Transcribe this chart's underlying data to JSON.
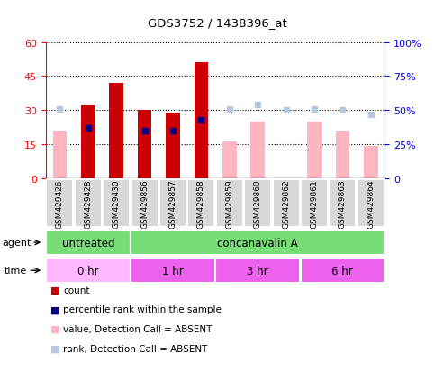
{
  "title": "GDS3752 / 1438396_at",
  "samples": [
    "GSM429426",
    "GSM429428",
    "GSM429430",
    "GSM429856",
    "GSM429857",
    "GSM429858",
    "GSM429859",
    "GSM429860",
    "GSM429862",
    "GSM429861",
    "GSM429863",
    "GSM429864"
  ],
  "count_values": [
    0,
    32,
    42,
    30,
    29,
    51,
    0,
    0,
    0,
    0,
    0,
    0
  ],
  "count_is_present": [
    false,
    true,
    true,
    true,
    true,
    true,
    false,
    false,
    false,
    false,
    false,
    false
  ],
  "value_absent": [
    21,
    0,
    0,
    0,
    0,
    0,
    16,
    25,
    0,
    25,
    21,
    14
  ],
  "rank_dark_values": [
    0,
    37,
    0,
    35,
    35,
    43,
    0,
    0,
    0,
    0,
    0,
    0
  ],
  "rank_dark_present": [
    false,
    true,
    false,
    true,
    true,
    true,
    false,
    false,
    false,
    false,
    false,
    false
  ],
  "rank_absent_values": [
    51,
    0,
    0,
    0,
    0,
    0,
    51,
    54,
    50,
    51,
    50,
    47
  ],
  "rank_absent_present": [
    true,
    false,
    false,
    false,
    false,
    false,
    true,
    true,
    true,
    true,
    true,
    true
  ],
  "ylim_left": [
    0,
    60
  ],
  "ylim_right": [
    0,
    100
  ],
  "yticks_left": [
    0,
    15,
    30,
    45,
    60
  ],
  "yticks_right": [
    0,
    25,
    50,
    75,
    100
  ],
  "ytick_labels_left": [
    "0",
    "15",
    "30",
    "45",
    "60"
  ],
  "ytick_labels_right": [
    "0",
    "25%",
    "50%",
    "75%",
    "100%"
  ],
  "count_color": "#CC0000",
  "count_absent_color": "#FFB6C1",
  "rank_dark_color": "#00008B",
  "rank_absent_color": "#B8C8DC",
  "agent_groups": [
    {
      "label": "untreated",
      "start": 0,
      "end": 3,
      "color": "#77DD77"
    },
    {
      "label": "concanavalin A",
      "start": 3,
      "end": 12,
      "color": "#77DD77"
    }
  ],
  "time_groups": [
    {
      "label": "0 hr",
      "start": 0,
      "end": 3,
      "color": "#FFB8FF"
    },
    {
      "label": "1 hr",
      "start": 3,
      "end": 6,
      "color": "#EE60EE"
    },
    {
      "label": "3 hr",
      "start": 6,
      "end": 9,
      "color": "#EE60EE"
    },
    {
      "label": "6 hr",
      "start": 9,
      "end": 12,
      "color": "#EE60EE"
    }
  ],
  "legend_items": [
    {
      "label": "count",
      "color": "#CC0000"
    },
    {
      "label": "percentile rank within the sample",
      "color": "#00008B"
    },
    {
      "label": "value, Detection Call = ABSENT",
      "color": "#FFB6C1"
    },
    {
      "label": "rank, Detection Call = ABSENT",
      "color": "#B8C8DC"
    }
  ]
}
